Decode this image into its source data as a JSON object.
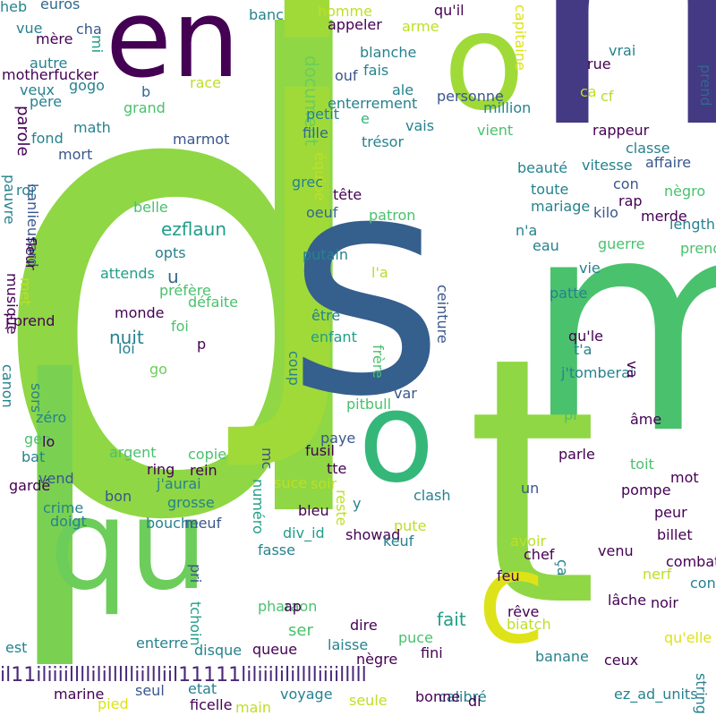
{
  "words": [
    {
      "text": "d",
      "color": "#8fd744"
    },
    {
      "text": "j",
      "color": "#a0da39"
    },
    {
      "text": "n",
      "color": "#443983"
    },
    {
      "text": "s",
      "color": "#355f8d"
    },
    {
      "text": "m",
      "color": "#4ac16d"
    },
    {
      "text": "l",
      "color": "#7ad151"
    },
    {
      "text": "t",
      "color": "#8fd744"
    },
    {
      "text": "en",
      "color": "#440154"
    },
    {
      "text": "o",
      "color": "#a0da39"
    },
    {
      "text": "qu",
      "color": "#6ccd5a"
    },
    {
      "text": "o",
      "color": "#35b779"
    },
    {
      "text": "c",
      "color": "#dde318"
    },
    {
      "text": "il11iliiiillllilillllliillliil11111liliiilililllliiiilllll",
      "color": "#482878"
    },
    {
      "text": "euros",
      "color": "#31688e"
    },
    {
      "text": "banc",
      "color": "#26828e"
    },
    {
      "text": "homme",
      "color": "#bddf26"
    },
    {
      "text": "qu'il",
      "color": "#440154"
    },
    {
      "text": "vue",
      "color": "#26828e"
    },
    {
      "text": "cha",
      "color": "#39568c"
    },
    {
      "text": "mère",
      "color": "#440154"
    },
    {
      "text": "mi",
      "color": "#1f9e89"
    },
    {
      "text": "arme",
      "color": "#bddf26"
    },
    {
      "text": "appeler",
      "color": "#440154"
    },
    {
      "text": "capitaine",
      "color": "#dde318"
    },
    {
      "text": "autre",
      "color": "#26828e"
    },
    {
      "text": "motherfucker",
      "color": "#440154"
    },
    {
      "text": "gogo",
      "color": "#26828e"
    },
    {
      "text": "blanche",
      "color": "#26828e"
    },
    {
      "text": "vrai",
      "color": "#26828e"
    },
    {
      "text": "ouf",
      "color": "#39568c"
    },
    {
      "text": "fais",
      "color": "#26828e"
    },
    {
      "text": "père",
      "color": "#26828e"
    },
    {
      "text": "race",
      "color": "#bddf26"
    },
    {
      "text": "document",
      "color": "#6ccd5a"
    },
    {
      "text": "ale",
      "color": "#26828e"
    },
    {
      "text": "rue",
      "color": "#440154"
    },
    {
      "text": "veux",
      "color": "#26828e"
    },
    {
      "text": "b",
      "color": "#31688e"
    },
    {
      "text": "personne",
      "color": "#39568c"
    },
    {
      "text": "ca",
      "color": "#bddf26"
    },
    {
      "text": "cf",
      "color": "#b5de2b"
    },
    {
      "text": "prend",
      "color": "#31688e"
    },
    {
      "text": "grand",
      "color": "#4ac16d"
    },
    {
      "text": "enterrement",
      "color": "#26828e"
    },
    {
      "text": "million",
      "color": "#26828e"
    },
    {
      "text": "parole",
      "color": "#440154"
    },
    {
      "text": "math",
      "color": "#26828e"
    },
    {
      "text": "petit",
      "color": "#26828e"
    },
    {
      "text": "e",
      "color": "#35b779"
    },
    {
      "text": "vais",
      "color": "#26828e"
    },
    {
      "text": "fond",
      "color": "#26828e"
    },
    {
      "text": "marmot",
      "color": "#39568c"
    },
    {
      "text": "fille",
      "color": "#31688e"
    },
    {
      "text": "vient",
      "color": "#4ac16d"
    },
    {
      "text": "rappeur",
      "color": "#440154"
    },
    {
      "text": "trésor",
      "color": "#26828e"
    },
    {
      "text": "mort",
      "color": "#39568c"
    },
    {
      "text": "classe",
      "color": "#26828e"
    },
    {
      "text": "roi",
      "color": "#26828e"
    },
    {
      "text": "équipe",
      "color": "#bddf26"
    },
    {
      "text": "beauté",
      "color": "#26828e"
    },
    {
      "text": "vitesse",
      "color": "#26828e"
    },
    {
      "text": "affaire",
      "color": "#39568c"
    },
    {
      "text": "pauvre",
      "color": "#26828e"
    },
    {
      "text": "banlieusard",
      "color": "#39568c"
    },
    {
      "text": "grec",
      "color": "#26828e"
    },
    {
      "text": "con",
      "color": "#39568c"
    },
    {
      "text": "nègro",
      "color": "#4ac16d"
    },
    {
      "text": "toute",
      "color": "#26828e"
    },
    {
      "text": "tête",
      "color": "#440154"
    },
    {
      "text": "rap",
      "color": "#440154"
    },
    {
      "text": "belle",
      "color": "#4ac16d"
    },
    {
      "text": "mariage",
      "color": "#26828e"
    },
    {
      "text": "kilo",
      "color": "#39568c"
    },
    {
      "text": "merde",
      "color": "#440154"
    },
    {
      "text": "length",
      "color": "#26828e"
    },
    {
      "text": "oeuf",
      "color": "#31688e"
    },
    {
      "text": "patron",
      "color": "#4ac16d"
    },
    {
      "text": "ezflaun",
      "color": "#1f9e89"
    },
    {
      "text": "fleur",
      "color": "#440154"
    },
    {
      "text": "n'a",
      "color": "#26828e"
    },
    {
      "text": "prendrai",
      "color": "#4ac16d"
    },
    {
      "text": "eau",
      "color": "#26828e"
    },
    {
      "text": "guerre",
      "color": "#4ac16d"
    },
    {
      "text": "opts",
      "color": "#26828e"
    },
    {
      "text": "putain",
      "color": "#26828e"
    },
    {
      "text": "u",
      "color": "#31688e"
    },
    {
      "text": "attends",
      "color": "#1f9e89"
    },
    {
      "text": "musique",
      "color": "#440154"
    },
    {
      "text": "met",
      "color": "#bddf26"
    },
    {
      "text": "l'a",
      "color": "#b5de2b"
    },
    {
      "text": "préfère",
      "color": "#4ac16d"
    },
    {
      "text": "patte",
      "color": "#26828e"
    },
    {
      "text": "vie",
      "color": "#26828e"
    },
    {
      "text": "ceinture",
      "color": "#39568c"
    },
    {
      "text": "défaite",
      "color": "#4ac16d"
    },
    {
      "text": "monde",
      "color": "#440154"
    },
    {
      "text": "j'prend",
      "color": "#440154"
    },
    {
      "text": "être",
      "color": "#26828e"
    },
    {
      "text": "foi",
      "color": "#4ac16d"
    },
    {
      "text": "nuit",
      "color": "#26828e"
    },
    {
      "text": "enfant",
      "color": "#1f9e89"
    },
    {
      "text": "qu'le",
      "color": "#440154"
    },
    {
      "text": "p",
      "color": "#440154"
    },
    {
      "text": "loi",
      "color": "#26828e"
    },
    {
      "text": "frère",
      "color": "#4ac16d"
    },
    {
      "text": "t'a",
      "color": "#26828e"
    },
    {
      "text": "go",
      "color": "#6ccd5a"
    },
    {
      "text": "coup",
      "color": "#26828e"
    },
    {
      "text": "j'tomberai",
      "color": "#26828e"
    },
    {
      "text": "va",
      "color": "#440154"
    },
    {
      "text": "canon",
      "color": "#26828e"
    },
    {
      "text": "sors",
      "color": "#26828e"
    },
    {
      "text": "var",
      "color": "#39568c"
    },
    {
      "text": "pitbull",
      "color": "#4ac16d"
    },
    {
      "text": "zéro",
      "color": "#26828e"
    },
    {
      "text": "pi",
      "color": "#4ac16d"
    },
    {
      "text": "âme",
      "color": "#440154"
    },
    {
      "text": "gen",
      "color": "#4ac16d"
    },
    {
      "text": "lo",
      "color": "#440154"
    },
    {
      "text": "paye",
      "color": "#39568c"
    },
    {
      "text": "fusil",
      "color": "#440154"
    },
    {
      "text": "argent",
      "color": "#4ac16d"
    },
    {
      "text": "copie",
      "color": "#4ac16d"
    },
    {
      "text": "parle",
      "color": "#440154"
    },
    {
      "text": "bat",
      "color": "#26828e"
    },
    {
      "text": "mc",
      "color": "#39568c"
    },
    {
      "text": "tte",
      "color": "#440154"
    },
    {
      "text": "toit",
      "color": "#4ac16d"
    },
    {
      "text": "ring",
      "color": "#440154"
    },
    {
      "text": "rein",
      "color": "#440154"
    },
    {
      "text": "mot",
      "color": "#440154"
    },
    {
      "text": "vend",
      "color": "#39568c"
    },
    {
      "text": "j'aurai",
      "color": "#26828e"
    },
    {
      "text": "numéro",
      "color": "#1f9e89"
    },
    {
      "text": "suce",
      "color": "#bddf26"
    },
    {
      "text": "soir",
      "color": "#bddf26"
    },
    {
      "text": "gardé",
      "color": "#440154"
    },
    {
      "text": "un",
      "color": "#39568c"
    },
    {
      "text": "pompe",
      "color": "#440154"
    },
    {
      "text": "bon",
      "color": "#39568c"
    },
    {
      "text": "grosse",
      "color": "#26828e"
    },
    {
      "text": "clash",
      "color": "#26828e"
    },
    {
      "text": "crime",
      "color": "#26828e"
    },
    {
      "text": "reste",
      "color": "#bddf26"
    },
    {
      "text": "y",
      "color": "#26828e"
    },
    {
      "text": "peur",
      "color": "#440154"
    },
    {
      "text": "doigt",
      "color": "#26828e"
    },
    {
      "text": "bouche",
      "color": "#26828e"
    },
    {
      "text": "meuf",
      "color": "#39568c"
    },
    {
      "text": "bleu",
      "color": "#440154"
    },
    {
      "text": "pute",
      "color": "#bddf26"
    },
    {
      "text": "div_id",
      "color": "#1f9e89"
    },
    {
      "text": "showad",
      "color": "#440154"
    },
    {
      "text": "keuf",
      "color": "#26828e"
    },
    {
      "text": "avoir",
      "color": "#bddf26"
    },
    {
      "text": "billet",
      "color": "#440154"
    },
    {
      "text": "fasse",
      "color": "#26828e"
    },
    {
      "text": "chef",
      "color": "#440154"
    },
    {
      "text": "venu",
      "color": "#440154"
    },
    {
      "text": "combat",
      "color": "#440154"
    },
    {
      "text": "pri",
      "color": "#39568c"
    },
    {
      "text": "feu",
      "color": "#440154"
    },
    {
      "text": "nerf",
      "color": "#bddf26"
    },
    {
      "text": "connu",
      "color": "#26828e"
    },
    {
      "text": "ça",
      "color": "#26828e"
    },
    {
      "text": "pharaon",
      "color": "#4ac16d"
    },
    {
      "text": "ap",
      "color": "#440154"
    },
    {
      "text": "lâche",
      "color": "#440154"
    },
    {
      "text": "noir",
      "color": "#440154"
    },
    {
      "text": "tchoin",
      "color": "#1f9e89"
    },
    {
      "text": "ser",
      "color": "#4ac16d"
    },
    {
      "text": "fait",
      "color": "#1f9e89"
    },
    {
      "text": "rêve",
      "color": "#440154"
    },
    {
      "text": "dire",
      "color": "#440154"
    },
    {
      "text": "biatch",
      "color": "#bddf26"
    },
    {
      "text": "est",
      "color": "#26828e"
    },
    {
      "text": "enterre",
      "color": "#26828e"
    },
    {
      "text": "disque",
      "color": "#26828e"
    },
    {
      "text": "queue",
      "color": "#440154"
    },
    {
      "text": "laisse",
      "color": "#26828e"
    },
    {
      "text": "puce",
      "color": "#4ac16d"
    },
    {
      "text": "fini",
      "color": "#440154"
    },
    {
      "text": "qu'elle",
      "color": "#dde318"
    },
    {
      "text": "nègre",
      "color": "#440154"
    },
    {
      "text": "banane",
      "color": "#26828e"
    },
    {
      "text": "ceux",
      "color": "#440154"
    },
    {
      "text": "marine",
      "color": "#440154"
    },
    {
      "text": "seul",
      "color": "#39568c"
    },
    {
      "text": "etat",
      "color": "#26828e"
    },
    {
      "text": "voyage",
      "color": "#26828e"
    },
    {
      "text": "calibré",
      "color": "#26828e"
    },
    {
      "text": "bonne",
      "color": "#440154"
    },
    {
      "text": "di",
      "color": "#440154"
    },
    {
      "text": "ez_ad_units",
      "color": "#26828e"
    },
    {
      "text": "string",
      "color": "#26828e"
    },
    {
      "text": "pied",
      "color": "#dde318"
    },
    {
      "text": "ficelle",
      "color": "#440154"
    },
    {
      "text": "main",
      "color": "#bddf26"
    },
    {
      "text": "seule",
      "color": "#bddf26"
    },
    {
      "text": "heb",
      "color": "#26828e"
    }
  ]
}
